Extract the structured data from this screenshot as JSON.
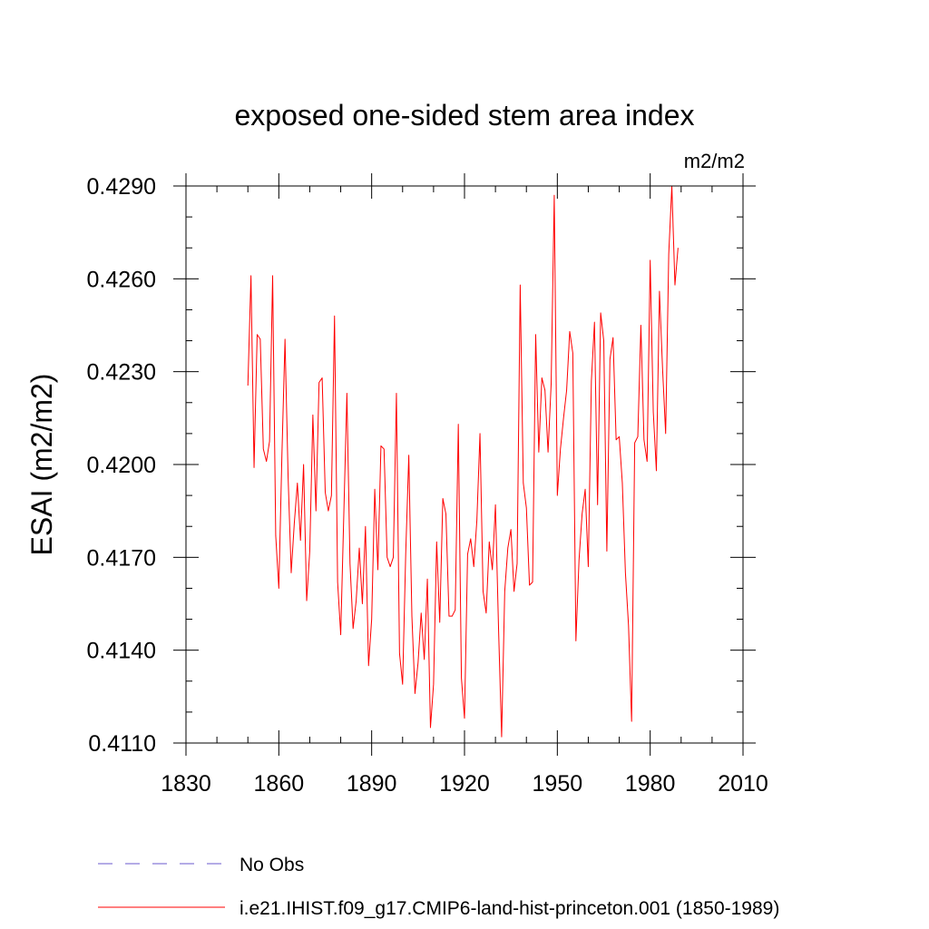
{
  "chart_data": {
    "type": "line",
    "title": "exposed one-sided stem area index",
    "units_label": "m2/m2",
    "ylabel": "ESAI  (m2/m2)",
    "xlabel": "",
    "xlim": [
      1830,
      2010
    ],
    "ylim": [
      0.411,
      0.429
    ],
    "xticks": [
      1830,
      1860,
      1890,
      1920,
      1950,
      1980,
      2010
    ],
    "xtick_labels": [
      "1830",
      "1860",
      "1890",
      "1920",
      "1950",
      "1980",
      "2010"
    ],
    "yticks": [
      0.411,
      0.414,
      0.417,
      0.42,
      0.423,
      0.426,
      0.429
    ],
    "ytick_labels": [
      "0.4110",
      "0.4140",
      "0.4170",
      "0.4200",
      "0.4230",
      "0.4260",
      "0.4290"
    ],
    "grid": false,
    "legend_position": "bottom",
    "series": [
      {
        "name": "No Obs",
        "color": "#6a5acd",
        "dash": true,
        "x": [],
        "values": []
      },
      {
        "name": "i.e21.IHIST.f09_g17.CMIP6-land-hist-princeton.001 (1850-1989)",
        "color": "#ff0000",
        "dash": false,
        "x": [
          1850,
          1851,
          1852,
          1853,
          1854,
          1855,
          1856,
          1857,
          1858,
          1859,
          1860,
          1861,
          1862,
          1863,
          1864,
          1865,
          1866,
          1867,
          1868,
          1869,
          1870,
          1871,
          1872,
          1873,
          1874,
          1875,
          1876,
          1877,
          1878,
          1879,
          1880,
          1881,
          1882,
          1883,
          1884,
          1885,
          1886,
          1887,
          1888,
          1889,
          1890,
          1891,
          1892,
          1893,
          1894,
          1895,
          1896,
          1897,
          1898,
          1899,
          1900,
          1901,
          1902,
          1903,
          1904,
          1905,
          1906,
          1907,
          1908,
          1909,
          1910,
          1911,
          1912,
          1913,
          1914,
          1915,
          1916,
          1917,
          1918,
          1919,
          1920,
          1921,
          1922,
          1923,
          1924,
          1925,
          1926,
          1927,
          1928,
          1929,
          1930,
          1931,
          1932,
          1933,
          1934,
          1935,
          1936,
          1937,
          1938,
          1939,
          1940,
          1941,
          1942,
          1943,
          1944,
          1945,
          1946,
          1947,
          1948,
          1949,
          1950,
          1951,
          1952,
          1953,
          1954,
          1955,
          1956,
          1957,
          1958,
          1959,
          1960,
          1961,
          1962,
          1963,
          1964,
          1965,
          1966,
          1967,
          1968,
          1969,
          1970,
          1971,
          1972,
          1973,
          1974,
          1975,
          1976,
          1977,
          1978,
          1979,
          1980,
          1981,
          1982,
          1983,
          1984,
          1985,
          1986,
          1987,
          1988,
          1989
        ],
        "values": [
          0.42255,
          0.4261,
          0.4199,
          0.4242,
          0.42405,
          0.4205,
          0.4201,
          0.42075,
          0.4261,
          0.4177,
          0.416,
          0.4203,
          0.42405,
          0.4196,
          0.4165,
          0.4181,
          0.4194,
          0.41755,
          0.42,
          0.4156,
          0.4172,
          0.4216,
          0.4185,
          0.42265,
          0.4228,
          0.4191,
          0.4185,
          0.419,
          0.4248,
          0.4162,
          0.4145,
          0.4184,
          0.4223,
          0.4168,
          0.4147,
          0.4156,
          0.4173,
          0.4155,
          0.418,
          0.4135,
          0.415,
          0.4192,
          0.4166,
          0.4206,
          0.4205,
          0.417,
          0.4167,
          0.417,
          0.4223,
          0.4139,
          0.4129,
          0.4171,
          0.4203,
          0.4151,
          0.4126,
          0.4136,
          0.4152,
          0.4137,
          0.4163,
          0.4115,
          0.4129,
          0.4175,
          0.4149,
          0.4189,
          0.4184,
          0.4151,
          0.4151,
          0.4153,
          0.4213,
          0.4131,
          0.4118,
          0.4171,
          0.4176,
          0.4167,
          0.4182,
          0.421,
          0.4159,
          0.4152,
          0.4175,
          0.4166,
          0.4187,
          0.4147,
          0.4112,
          0.4159,
          0.4173,
          0.4179,
          0.4159,
          0.4168,
          0.4258,
          0.4194,
          0.4186,
          0.4161,
          0.4162,
          0.4242,
          0.4204,
          0.4228,
          0.4224,
          0.4204,
          0.4226,
          0.4287,
          0.419,
          0.4205,
          0.4215,
          0.4224,
          0.4243,
          0.4236,
          0.4143,
          0.4169,
          0.4184,
          0.4192,
          0.4167,
          0.4227,
          0.4246,
          0.4187,
          0.4249,
          0.424,
          0.4172,
          0.4234,
          0.4241,
          0.4208,
          0.4209,
          0.4194,
          0.4165,
          0.4148,
          0.4117,
          0.4207,
          0.4209,
          0.4245,
          0.4208,
          0.4201,
          0.4266,
          0.4217,
          0.4198,
          0.4256,
          0.4231,
          0.421,
          0.4268,
          0.429,
          0.4258,
          0.427
        ]
      }
    ]
  }
}
